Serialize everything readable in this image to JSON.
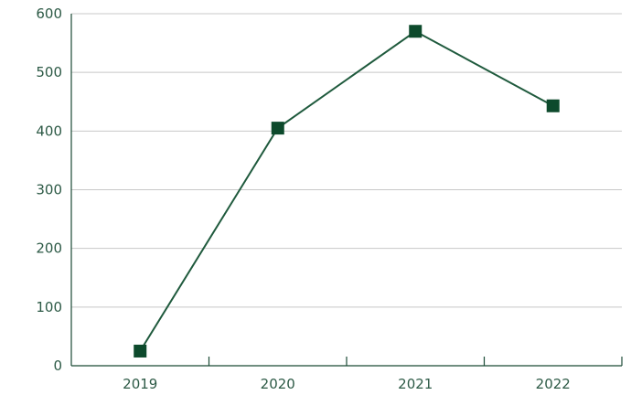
{
  "chart_data": {
    "type": "line",
    "categories": [
      "2019",
      "2020",
      "2021",
      "2022"
    ],
    "series": [
      {
        "name": "",
        "values": [
          25,
          405,
          570,
          443
        ]
      }
    ],
    "title": "",
    "xlabel": "",
    "ylabel": "",
    "ylim": [
      0,
      600
    ],
    "yticks": [
      0,
      100,
      200,
      300,
      400,
      500,
      600
    ],
    "ytick_labels": [
      "0",
      "100",
      "200",
      "300",
      "400",
      "500",
      "600"
    ],
    "grid": "horizontal",
    "marker": "square",
    "colors": {
      "line": "#1f5a3d",
      "marker": "#0d4a2c",
      "grid": "#c8c8c8",
      "axis": "#1a4a35",
      "text": "#2d5a46"
    }
  }
}
